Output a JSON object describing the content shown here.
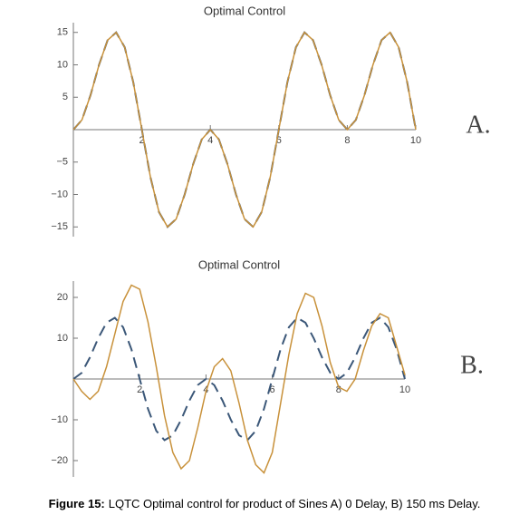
{
  "chart_data": [
    {
      "type": "line",
      "title": "Optimal Control",
      "annotation": "A.",
      "x": [
        0,
        0.25,
        0.5,
        0.75,
        1,
        1.25,
        1.5,
        1.75,
        2,
        2.25,
        2.5,
        2.75,
        3,
        3.25,
        3.5,
        3.75,
        4,
        4.25,
        4.5,
        4.75,
        5,
        5.25,
        5.5,
        5.75,
        6,
        6.25,
        6.5,
        6.75,
        7,
        7.25,
        7.5,
        7.75,
        8,
        8.25,
        8.5,
        8.75,
        9,
        9.25,
        9.5,
        9.75,
        10
      ],
      "series": [
        {
          "color": "#3b5778",
          "style": "dashed",
          "values": [
            0,
            1.5,
            5.3,
            10,
            13.8,
            15,
            12.7,
            7.3,
            0,
            -7.3,
            -12.7,
            -15,
            -13.8,
            -10,
            -5.3,
            -1.5,
            0,
            -1.5,
            -5.3,
            -10,
            -13.8,
            -15,
            -12.7,
            -7.3,
            0,
            7.3,
            12.7,
            15,
            13.8,
            10,
            5.3,
            1.5,
            0,
            1.5,
            5.3,
            10,
            13.8,
            15,
            12.7,
            7.3,
            0
          ]
        },
        {
          "color": "#c8913a",
          "style": "solid",
          "values": [
            0,
            1.5,
            5.3,
            10,
            13.8,
            15,
            12.7,
            7.3,
            0,
            -7.3,
            -12.7,
            -15,
            -13.8,
            -10,
            -5.3,
            -1.5,
            0,
            -1.5,
            -5.3,
            -10,
            -13.8,
            -15,
            -12.7,
            -7.3,
            0,
            7.3,
            12.7,
            15,
            13.8,
            10,
            5.3,
            1.5,
            0,
            1.5,
            5.3,
            10,
            13.8,
            15,
            12.7,
            7.3,
            0
          ]
        }
      ],
      "xlim": [
        0,
        10
      ],
      "xticks": [
        2,
        4,
        6,
        8,
        10
      ],
      "ylim": [
        -16.5,
        16.5
      ],
      "yticks": [
        {
          "value": -15,
          "label": "−15"
        },
        {
          "value": -10,
          "label": "−10"
        },
        {
          "value": -5,
          "label": "−5"
        },
        5,
        10,
        15
      ]
    },
    {
      "type": "line",
      "title": "Optimal Control",
      "annotation": "B.",
      "x": [
        0,
        0.25,
        0.5,
        0.75,
        1,
        1.25,
        1.5,
        1.75,
        2,
        2.25,
        2.5,
        2.75,
        3,
        3.25,
        3.5,
        3.75,
        4,
        4.25,
        4.5,
        4.75,
        5,
        5.25,
        5.5,
        5.75,
        6,
        6.25,
        6.5,
        6.75,
        7,
        7.25,
        7.5,
        7.75,
        8,
        8.25,
        8.5,
        8.75,
        9,
        9.25,
        9.5,
        9.75,
        10
      ],
      "series": [
        {
          "color": "#3b5778",
          "style": "dashed",
          "values": [
            0,
            1.5,
            5.3,
            10,
            13.8,
            15,
            12.7,
            7.3,
            0,
            -7.3,
            -12.7,
            -15,
            -13.8,
            -10,
            -5.3,
            -1.5,
            0,
            -1.5,
            -5.3,
            -10,
            -13.8,
            -15,
            -12.7,
            -7.3,
            0,
            7.3,
            12.7,
            15,
            13.8,
            10,
            5.3,
            1.5,
            0,
            1.5,
            5.3,
            10,
            13.8,
            15,
            12.7,
            7.3,
            0
          ]
        },
        {
          "color": "#c8913a",
          "style": "solid",
          "values": [
            0,
            -3,
            -5,
            -3,
            3,
            11,
            19,
            23,
            22,
            14,
            3,
            -9,
            -18,
            -22,
            -20,
            -12,
            -3,
            3,
            5,
            2,
            -6,
            -15,
            -21,
            -23,
            -18,
            -6,
            6,
            16,
            21,
            20,
            13,
            4,
            -2,
            -3,
            0,
            7,
            13,
            16,
            15,
            8,
            1
          ]
        }
      ],
      "xlim": [
        0,
        10
      ],
      "xticks": [
        2,
        4,
        6,
        8,
        10
      ],
      "ylim": [
        -24,
        24
      ],
      "yticks": [
        {
          "value": -20,
          "label": "−20"
        },
        {
          "value": -10,
          "label": "−10"
        },
        10,
        20
      ]
    }
  ],
  "caption": {
    "label": "Figure 15:",
    "text": "LQTC Optimal control for product of Sines A) 0 Delay, B) 150 ms Delay."
  }
}
